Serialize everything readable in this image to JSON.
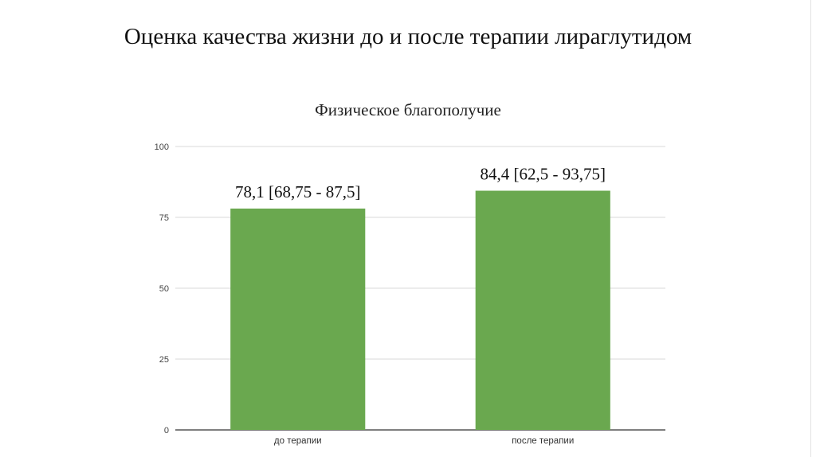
{
  "slide": {
    "title": "Оценка качества жизни до и после терапии лираглутидом"
  },
  "chart_data": {
    "type": "bar",
    "title": "Физическое благополучие",
    "categories": [
      "до терапии",
      "после терапии"
    ],
    "values": [
      78.1,
      84.4
    ],
    "data_labels": [
      "78,1 [68,75 - 87,5]",
      "84,4 [62,5 - 93,75]"
    ],
    "ylim": [
      0,
      100
    ],
    "yticks": [
      0,
      25,
      50,
      75,
      100
    ],
    "grid": true,
    "legend": "none",
    "bar_color": "#6aa84f",
    "grid_color": "#d9d9d9"
  }
}
